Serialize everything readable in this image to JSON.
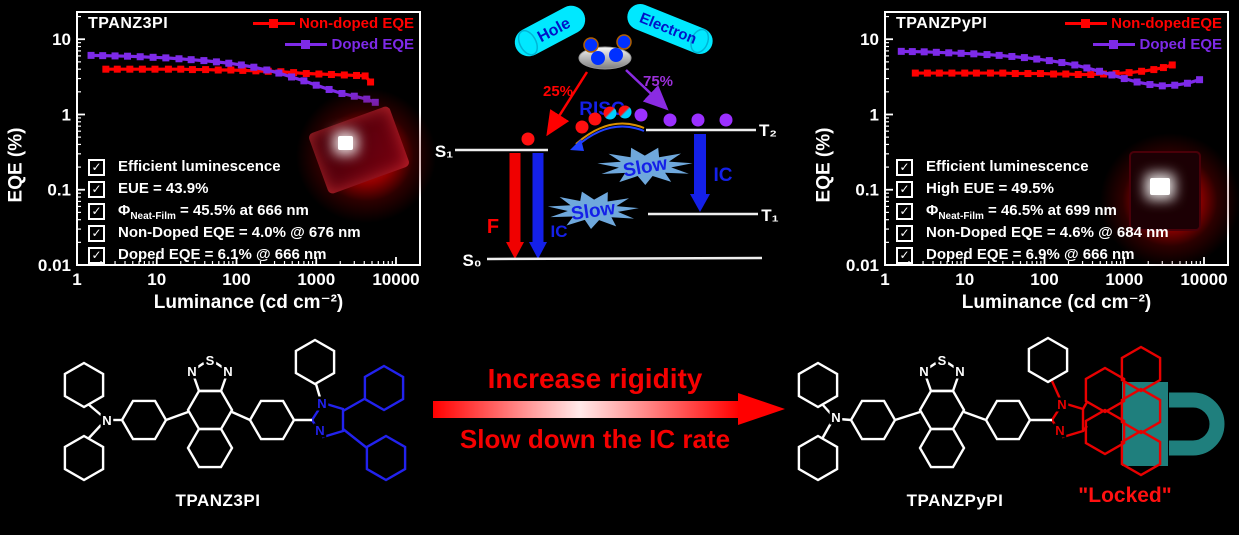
{
  "ui": {
    "check_glyph": "✓"
  },
  "colors": {
    "series_red": "#FF0000",
    "series_purple": "#7D2AE8",
    "diagram_blue": "#1420E8",
    "capsule_cyan": "#00E8FF",
    "starburst_blue": "#6FA8DC",
    "lock_teal": "#1F7F7D",
    "transition_red": "#F50000"
  },
  "chart_data": [
    {
      "type": "line",
      "title": "TPANZ3PI",
      "xlabel": "Luminance (cd cm⁻²)",
      "ylabel": "EQE (%)",
      "xscale": "log",
      "yscale": "log",
      "xlim": [
        1,
        20000
      ],
      "ylim": [
        0.01,
        23
      ],
      "x_ticks": [
        1,
        10,
        100,
        1000,
        10000
      ],
      "x_tick_labels": [
        "1",
        "10",
        "100",
        "1000",
        "10000"
      ],
      "y_ticks": [
        10,
        1,
        0.1,
        0.01
      ],
      "grid": false,
      "legend_position": "top-right",
      "series": [
        {
          "name": "Non-doped EQE",
          "color": "#FF0000",
          "x": [
            2.3,
            3.2,
            4.6,
            6.6,
            9.5,
            14,
            20,
            28,
            41,
            59,
            85,
            120,
            175,
            250,
            360,
            520,
            750,
            1080,
            1550,
            2250,
            3200,
            4100,
            4800
          ],
          "y": [
            4.0,
            4.0,
            4.0,
            4.0,
            4.0,
            4.0,
            4.0,
            3.95,
            3.95,
            3.9,
            3.9,
            3.85,
            3.8,
            3.75,
            3.7,
            3.6,
            3.5,
            3.45,
            3.4,
            3.35,
            3.3,
            3.25,
            2.7
          ]
        },
        {
          "name": "Doped EQE",
          "color": "#7D2AE8",
          "x": [
            1.5,
            2.1,
            3,
            4.3,
            6.2,
            9,
            13,
            19,
            27,
            39,
            56,
            80,
            115,
            165,
            240,
            340,
            490,
            700,
            1000,
            1450,
            2100,
            3000,
            4300,
            5500
          ],
          "y": [
            6.1,
            6.05,
            6.0,
            5.95,
            5.85,
            5.75,
            5.65,
            5.5,
            5.35,
            5.2,
            5.0,
            4.8,
            4.55,
            4.25,
            3.9,
            3.55,
            3.15,
            2.8,
            2.45,
            2.15,
            1.9,
            1.75,
            1.6,
            1.45
          ]
        }
      ]
    },
    {
      "type": "line",
      "title": "TPANZPyPI",
      "xlabel": "Luminance (cd cm⁻²)",
      "ylabel": "EQE (%)",
      "xscale": "log",
      "yscale": "log",
      "xlim": [
        1,
        20000
      ],
      "ylim": [
        0.01,
        23
      ],
      "x_ticks": [
        1,
        10,
        100,
        1000,
        10000
      ],
      "x_tick_labels": [
        "1",
        "10",
        "100",
        "1000",
        "10000"
      ],
      "y_ticks": [
        10,
        1,
        0.1,
        0.01
      ],
      "grid": false,
      "legend_position": "top-right",
      "series": [
        {
          "name": "Non-dopedEQE",
          "color": "#FF0000",
          "x": [
            2.4,
            3.4,
            4.8,
            6.9,
            10,
            14,
            21,
            30,
            43,
            62,
            89,
            130,
            185,
            265,
            380,
            550,
            790,
            1150,
            1650,
            2350,
            3100,
            4000
          ],
          "y": [
            3.55,
            3.55,
            3.55,
            3.55,
            3.55,
            3.55,
            3.55,
            3.55,
            3.5,
            3.5,
            3.5,
            3.45,
            3.45,
            3.4,
            3.4,
            3.45,
            3.5,
            3.6,
            3.75,
            3.95,
            4.2,
            4.55
          ]
        },
        {
          "name": "Doped EQE",
          "color": "#7D2AE8",
          "x": [
            1.6,
            2.2,
            3.1,
            4.4,
            6.3,
            9,
            13,
            19,
            27,
            39,
            56,
            80,
            115,
            165,
            240,
            340,
            490,
            700,
            1000,
            1450,
            2100,
            3000,
            4300,
            6200,
            8800
          ],
          "y": [
            6.9,
            6.85,
            6.8,
            6.7,
            6.6,
            6.5,
            6.4,
            6.25,
            6.1,
            5.9,
            5.7,
            5.45,
            5.2,
            4.9,
            4.55,
            4.15,
            3.75,
            3.35,
            3.0,
            2.7,
            2.5,
            2.4,
            2.45,
            2.6,
            2.9
          ]
        }
      ]
    }
  ],
  "plots": {
    "left": {
      "checklist": [
        {
          "pre": "Efficient luminescence"
        },
        {
          "pre": "EUE = 43.9%"
        },
        {
          "pre": "Φ",
          "sub": "Neat-Film",
          "post": " = 45.5% at 666 nm"
        },
        {
          "pre": "Non-Doped EQE = 4.0% @ 676 nm"
        },
        {
          "pre": "Doped EQE = 6.1% @ 666 nm"
        }
      ]
    },
    "right": {
      "checklist": [
        {
          "pre": "Efficient luminescence"
        },
        {
          "pre": "High EUE = 49.5%"
        },
        {
          "pre": "Φ",
          "sub": "Neat-Film",
          "post": " = 46.5% at 699 nm"
        },
        {
          "pre": "Non-Doped EQE = 4.6% @ 684 nm"
        },
        {
          "pre": "Doped EQE = 6.9% @ 666 nm"
        }
      ]
    }
  },
  "diagram": {
    "hole_label": "Hole",
    "electron_label": "Electron",
    "singlet_fraction": "25%",
    "triplet_fraction": "75%",
    "risc_label": "RISC",
    "f_label": "F",
    "ic_label_s1": "IC",
    "ic_label_t2": "IC",
    "slow_label_upper": "Slow",
    "slow_label_lower": "Slow",
    "level_s1": "S₁",
    "level_s0": "S₀",
    "level_t1": "T₁",
    "level_t2": "T₂"
  },
  "transition": {
    "top_label": "Increase rigidity",
    "bottom_label": "Slow down the IC rate"
  },
  "molecules": {
    "left": {
      "name": "TPANZ3PI",
      "amine_nitrogen": "N",
      "thiadiazole_atoms": [
        "N",
        "S",
        "N"
      ],
      "imidazole_atoms": [
        "N",
        "N"
      ]
    },
    "right": {
      "name": "TPANZPyPI",
      "locked_label": "\"Locked\"",
      "amine_nitrogen": "N",
      "thiadiazole_atoms": [
        "N",
        "S",
        "N"
      ],
      "imidazole_atoms": [
        "N",
        "N"
      ]
    }
  }
}
